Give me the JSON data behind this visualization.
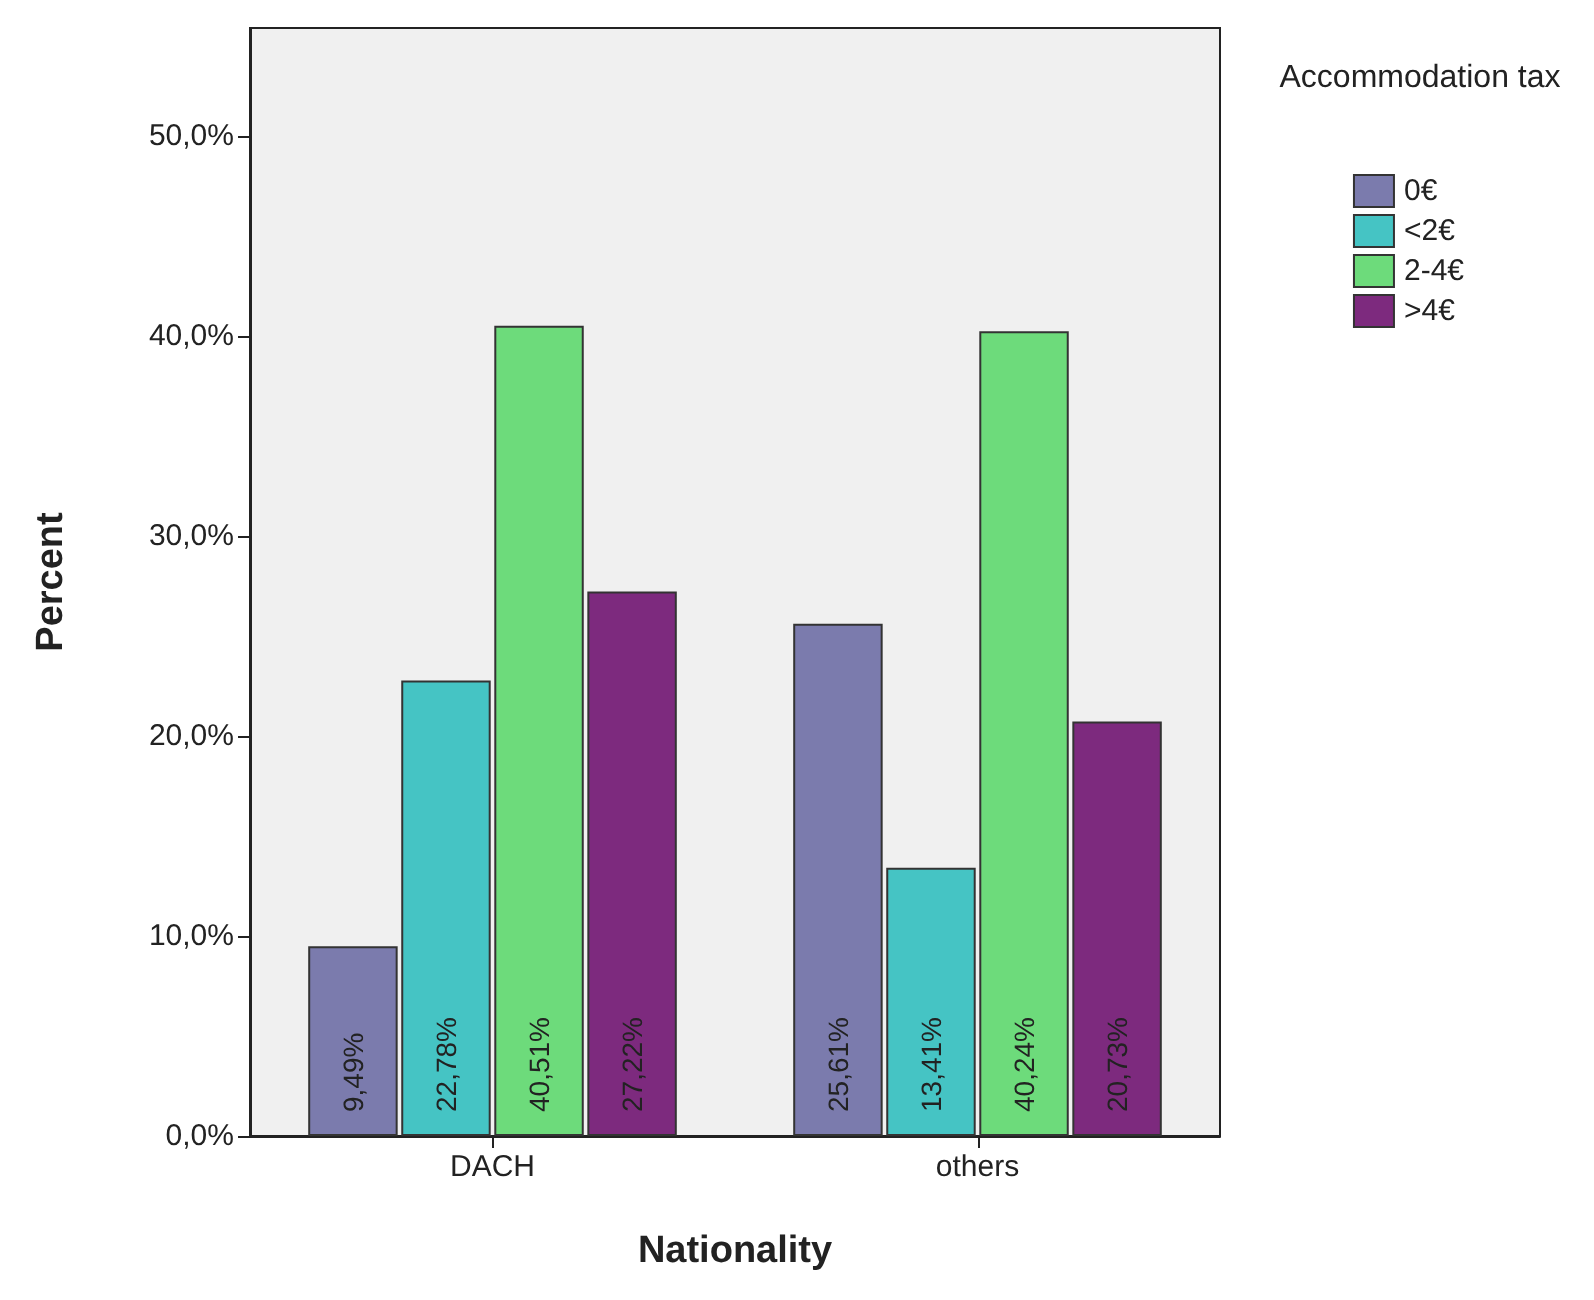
{
  "chart_data": {
    "type": "bar",
    "xlabel": "Nationality",
    "ylabel": "Percent",
    "legend_title": "Accommodation tax",
    "legend": "top right",
    "categories": [
      "DACH",
      "others"
    ],
    "series": [
      {
        "name": "0€",
        "color": "#7b7bad",
        "values": [
          9.49,
          25.61
        ],
        "value_labels": [
          "9,49%",
          "25,61%"
        ]
      },
      {
        "name": "<2€",
        "color": "#45c4c4",
        "values": [
          22.78,
          13.41
        ],
        "value_labels": [
          "22,78%",
          "13,41%"
        ]
      },
      {
        "name": "2-4€",
        "color": "#6ddb7b",
        "values": [
          40.51,
          40.24
        ],
        "value_labels": [
          "40,51%",
          "40,24%"
        ]
      },
      {
        "name": ">4€",
        "color": "#7d2a7e",
        "values": [
          27.22,
          20.73
        ],
        "value_labels": [
          "27,22%",
          "20,73%"
        ]
      }
    ],
    "ylim": [
      0,
      55.4
    ],
    "yticks": [
      {
        "value": 0,
        "label": "0,0%"
      },
      {
        "value": 10,
        "label": "10,0%"
      },
      {
        "value": 20,
        "label": "20,0%"
      },
      {
        "value": 30,
        "label": "30,0%"
      },
      {
        "value": 40,
        "label": "40,0%"
      },
      {
        "value": 50,
        "label": "50,0%"
      }
    ]
  }
}
